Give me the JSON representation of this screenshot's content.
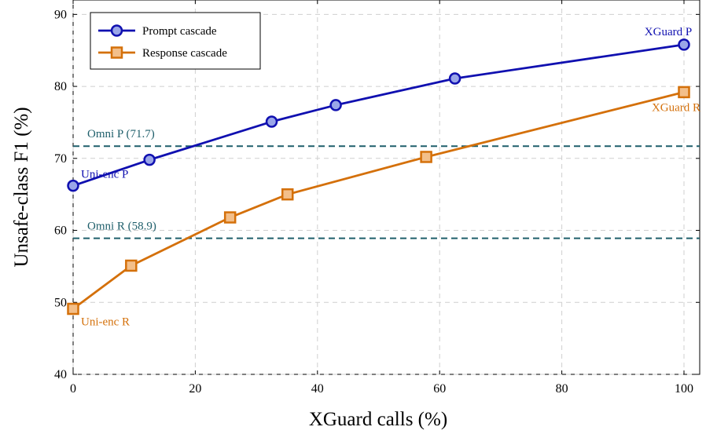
{
  "chart_data": {
    "type": "line",
    "xlabel": "XGuard calls (%)",
    "ylabel": "Unsafe-class F1 (%)",
    "xlim": [
      0,
      100
    ],
    "ylim": [
      40,
      92
    ],
    "xticks": [
      0,
      20,
      40,
      60,
      80,
      100
    ],
    "yticks": [
      40,
      50,
      60,
      70,
      80,
      90
    ],
    "grid": true,
    "legend_position": "top-left",
    "series": [
      {
        "name": "Prompt cascade",
        "color": "#1010b0",
        "marker": "circle",
        "marker_fill": "#9aa6e8",
        "x": [
          0,
          12.5,
          32.5,
          43,
          62.5,
          100
        ],
        "y": [
          66.2,
          69.8,
          75.1,
          77.4,
          81.1,
          85.8
        ]
      },
      {
        "name": "Response cascade",
        "color": "#d4700a",
        "marker": "square",
        "marker_fill": "#f3bf8a",
        "x": [
          0,
          9.5,
          25.7,
          35.1,
          57.8,
          100
        ],
        "y": [
          49.1,
          55.1,
          61.8,
          65.0,
          70.2,
          79.2
        ]
      }
    ],
    "reference_lines": [
      {
        "label": "Omni P (71.7)",
        "y": 71.7,
        "color": "#1f5f6b"
      },
      {
        "label": "Omni R (58.9)",
        "y": 58.9,
        "color": "#1f5f6b"
      }
    ],
    "annotations": [
      {
        "text": "Uni-enc P",
        "x": 0,
        "y": 66.2,
        "color": "#1010b0"
      },
      {
        "text": "Uni-enc R",
        "x": 0,
        "y": 49.1,
        "color": "#d4700a"
      },
      {
        "text": "XGuard P",
        "x": 100,
        "y": 85.8,
        "color": "#1010b0"
      },
      {
        "text": "XGuard R",
        "x": 100,
        "y": 79.2,
        "color": "#d4700a"
      }
    ]
  }
}
